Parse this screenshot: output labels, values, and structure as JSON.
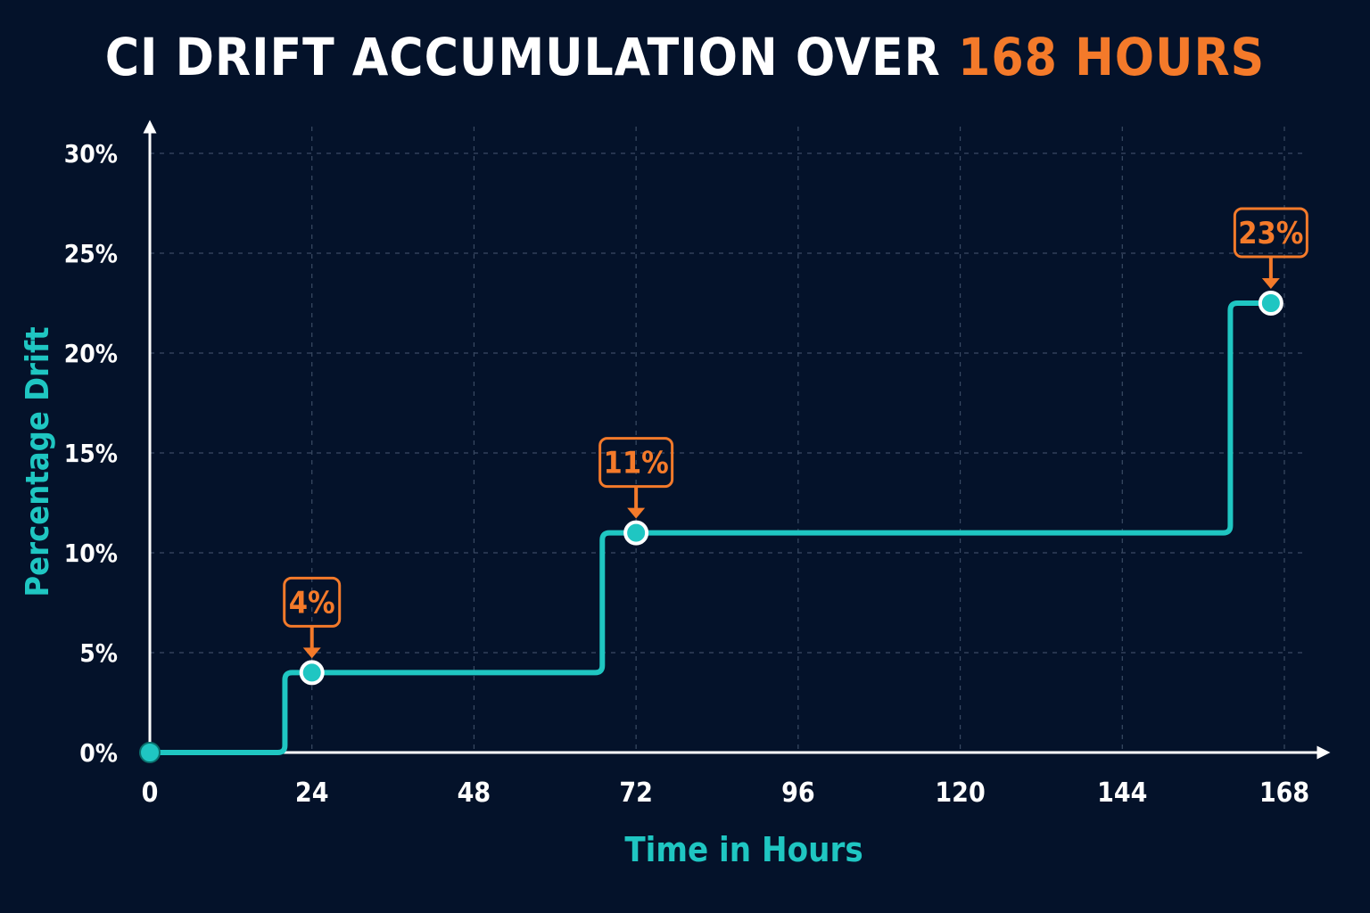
{
  "title": {
    "main": "CI DRIFT ACCUMULATION OVER",
    "highlight": "168 HOURS"
  },
  "colors": {
    "background": "#04122a",
    "line": "#1fc6c2",
    "annotation": "#f47a2a",
    "axis": "#ffffff",
    "grid": "#3a4a63"
  },
  "chart_data": {
    "type": "line",
    "step": true,
    "xlabel": "Time in Hours",
    "ylabel": "Percentage Drift",
    "xlim": [
      0,
      168
    ],
    "ylim": [
      0,
      30
    ],
    "x_ticks": [
      "0",
      "24",
      "48",
      "72",
      "96",
      "120",
      "144",
      "168"
    ],
    "y_ticks": [
      "0%",
      "5%",
      "10%",
      "15%",
      "20%",
      "25%",
      "30%"
    ],
    "x_tick_values": [
      0,
      24,
      48,
      72,
      96,
      120,
      144,
      168
    ],
    "y_tick_values": [
      0,
      5,
      10,
      15,
      20,
      25,
      30
    ],
    "grid": true,
    "series": [
      {
        "x": [
          0,
          20,
          24,
          67,
          72,
          160,
          166
        ],
        "y": [
          0,
          4,
          4,
          11,
          11,
          22.5,
          22.5
        ]
      }
    ],
    "markers": [
      {
        "x": 0,
        "y": 0
      },
      {
        "x": 24,
        "y": 4
      },
      {
        "x": 72,
        "y": 11
      },
      {
        "x": 166,
        "y": 22.5
      }
    ],
    "annotations": [
      {
        "x": 24,
        "y": 4,
        "label": "4%"
      },
      {
        "x": 72,
        "y": 11,
        "label": "11%"
      },
      {
        "x": 166,
        "y": 22.5,
        "label": "23%"
      }
    ]
  }
}
